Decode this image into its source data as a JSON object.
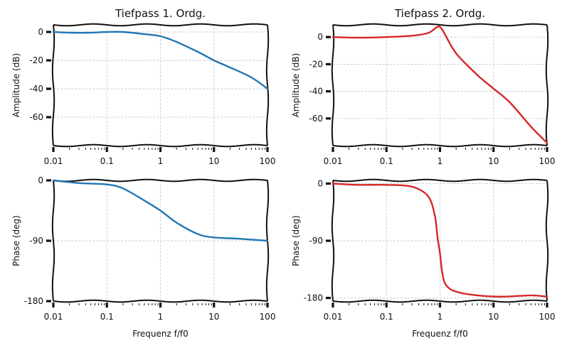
{
  "chart_data": [
    {
      "type": "line",
      "title": "Tiefpass 1. Ordg.",
      "xlabel": "",
      "ylabel": "Amplitude (dB)",
      "xscale": "log",
      "xlim": [
        0.01,
        100
      ],
      "ylim": [
        -80,
        5
      ],
      "xticks": [
        0.01,
        0.1,
        1,
        10,
        100
      ],
      "xtick_labels": [
        "0.01",
        "0.1",
        "1",
        "10",
        "100"
      ],
      "yticks": [
        0,
        -20,
        -40,
        -60
      ],
      "ytick_labels": [
        "0",
        "-20",
        "-40",
        "-60"
      ],
      "grid": true,
      "color": "#2277b4",
      "x": [
        0.01,
        0.02,
        0.05,
        0.1,
        0.2,
        0.5,
        1,
        2,
        5,
        10,
        20,
        50,
        100
      ],
      "y": [
        0,
        -0.5,
        -0.5,
        0,
        0,
        -1.5,
        -3,
        -7,
        -14,
        -20,
        -25,
        -32,
        -40
      ]
    },
    {
      "type": "line",
      "title": "Tiefpass 2. Ordg.",
      "xlabel": "",
      "ylabel": "Amplitude (dB)",
      "xscale": "log",
      "xlim": [
        0.01,
        100
      ],
      "ylim": [
        -80,
        9
      ],
      "xticks": [
        0.01,
        0.1,
        1,
        10,
        100
      ],
      "xtick_labels": [
        "0.01",
        "0.1",
        "1",
        "10",
        "100"
      ],
      "yticks": [
        0,
        -20,
        -40,
        -60
      ],
      "ytick_labels": [
        "0",
        "-20",
        "-40",
        "-60"
      ],
      "grid": true,
      "color": "#d62728",
      "x": [
        0.01,
        0.03,
        0.1,
        0.3,
        0.6,
        0.85,
        1,
        1.2,
        2,
        5,
        10,
        20,
        50,
        100
      ],
      "y": [
        0,
        -0.5,
        0,
        1,
        3,
        7,
        7.5,
        3,
        -12,
        -28,
        -38,
        -48,
        -66,
        -78
      ]
    },
    {
      "type": "line",
      "title": "",
      "xlabel": "Frequenz f/f0",
      "ylabel": "Phase (deg)",
      "xscale": "log",
      "xlim": [
        0.01,
        100
      ],
      "ylim": [
        -180,
        0
      ],
      "xticks": [
        0.01,
        0.1,
        1,
        10,
        100
      ],
      "xtick_labels": [
        "0.01",
        "0.1",
        "1",
        "10",
        "100"
      ],
      "yticks": [
        0,
        -90,
        -180
      ],
      "ytick_labels": [
        "0",
        "-90",
        "-180"
      ],
      "grid": true,
      "color": "#2277b4",
      "x": [
        0.01,
        0.03,
        0.1,
        0.2,
        0.5,
        1,
        2,
        5,
        10,
        30,
        100
      ],
      "y": [
        0,
        -4,
        -6,
        -12,
        -30,
        -45,
        -63,
        -80,
        -85,
        -87,
        -90
      ]
    },
    {
      "type": "line",
      "title": "",
      "xlabel": "Frequenz f/f0",
      "ylabel": "Phase (deg)",
      "xscale": "log",
      "xlim": [
        0.01,
        100
      ],
      "ylim": [
        -185,
        5
      ],
      "xticks": [
        0.01,
        0.1,
        1,
        10,
        100
      ],
      "xtick_labels": [
        "0.01",
        "0.1",
        "1",
        "10",
        "100"
      ],
      "yticks": [
        0,
        -90,
        -180
      ],
      "ytick_labels": [
        "0",
        "-90",
        "-180"
      ],
      "grid": true,
      "color": "#d62728",
      "x": [
        0.01,
        0.03,
        0.1,
        0.3,
        0.6,
        0.8,
        0.9,
        1,
        1.1,
        1.3,
        2,
        5,
        15,
        50,
        100
      ],
      "y": [
        0,
        -2,
        -2,
        -5,
        -20,
        -50,
        -85,
        -110,
        -140,
        -160,
        -170,
        -176,
        -178,
        -176,
        -178
      ]
    }
  ]
}
